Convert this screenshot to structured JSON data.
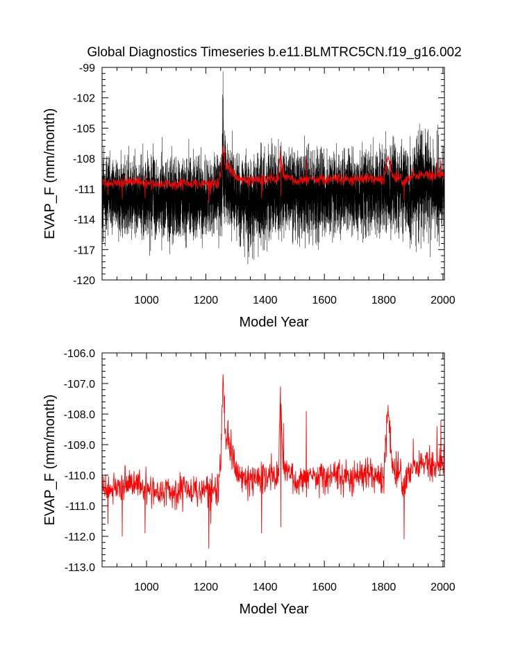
{
  "figure_title": "Global Diagnostics Timeseries b.e11.BLMTRC5CN.f19_g16.002",
  "chart_data": [
    {
      "type": "line",
      "title": "Global Diagnostics Timeseries b.e11.BLMTRC5CN.f19_g16.002",
      "xlabel": "Model Year",
      "ylabel": "EVAP_F (mm/month)",
      "xlim": [
        850,
        2005
      ],
      "ylim": [
        -120,
        -99
      ],
      "xticks": [
        1000,
        1200,
        1400,
        1600,
        1800,
        2000
      ],
      "xtick_labels": [
        "1000",
        "1200",
        "1400",
        "1600",
        "1800",
        "2000"
      ],
      "yticks": [
        -120,
        -117,
        -114,
        -111,
        -108,
        -105,
        -102,
        -99
      ],
      "ytick_labels": [
        "-120",
        "-117",
        "-114",
        "-111",
        "-108",
        "-105",
        "-102",
        "-99"
      ],
      "grid": false,
      "series": [
        {
          "color": "#000000",
          "resolution": "monthly",
          "envelope_upper": [
            [
              850,
              -106.0
            ],
            [
              900,
              -106.3
            ],
            [
              950,
              -106.5
            ],
            [
              1000,
              -106.2
            ],
            [
              1050,
              -106.0
            ],
            [
              1100,
              -106.2
            ],
            [
              1150,
              -105.8
            ],
            [
              1200,
              -106.1
            ],
            [
              1250,
              -105.5
            ],
            [
              1258,
              -99.4
            ],
            [
              1270,
              -104.8
            ],
            [
              1300,
              -105.6
            ],
            [
              1350,
              -106.0
            ],
            [
              1400,
              -105.5
            ],
            [
              1450,
              -105.0
            ],
            [
              1455,
              -104.2
            ],
            [
              1500,
              -105.3
            ],
            [
              1550,
              -105.4
            ],
            [
              1600,
              -105.5
            ],
            [
              1650,
              -105.6
            ],
            [
              1700,
              -105.4
            ],
            [
              1750,
              -105.6
            ],
            [
              1800,
              -104.8
            ],
            [
              1850,
              -104.5
            ],
            [
              1900,
              -104.8
            ],
            [
              1940,
              -102.4
            ],
            [
              1960,
              -104.6
            ],
            [
              2005,
              -104.8
            ]
          ],
          "envelope_lower": [
            [
              850,
              -117.0
            ],
            [
              900,
              -117.4
            ],
            [
              950,
              -117.0
            ],
            [
              1000,
              -117.5
            ],
            [
              1050,
              -117.4
            ],
            [
              1100,
              -117.7
            ],
            [
              1150,
              -118.0
            ],
            [
              1200,
              -117.5
            ],
            [
              1250,
              -117.0
            ],
            [
              1300,
              -117.6
            ],
            [
              1350,
              -119.8
            ],
            [
              1400,
              -118.0
            ],
            [
              1450,
              -117.5
            ],
            [
              1500,
              -117.2
            ],
            [
              1550,
              -117.8
            ],
            [
              1600,
              -117.3
            ],
            [
              1650,
              -117.0
            ],
            [
              1700,
              -117.2
            ],
            [
              1750,
              -117.3
            ],
            [
              1800,
              -117.0
            ],
            [
              1850,
              -117.5
            ],
            [
              1900,
              -118.0
            ],
            [
              1950,
              -117.6
            ],
            [
              2005,
              -117.5
            ]
          ]
        },
        {
          "color": "#ff0000",
          "resolution": "annual",
          "anchors": [
            [
              850,
              -110.4
            ],
            [
              900,
              -110.5
            ],
            [
              950,
              -110.2
            ],
            [
              1000,
              -110.4
            ],
            [
              1050,
              -110.5
            ],
            [
              1100,
              -110.6
            ],
            [
              1150,
              -110.4
            ],
            [
              1200,
              -110.5
            ],
            [
              1240,
              -110.4
            ],
            [
              1250,
              -109.8
            ],
            [
              1258,
              -106.7
            ],
            [
              1265,
              -108.4
            ],
            [
              1280,
              -109.0
            ],
            [
              1300,
              -109.8
            ],
            [
              1340,
              -110.2
            ],
            [
              1400,
              -110.0
            ],
            [
              1445,
              -110.1
            ],
            [
              1452,
              -107.1
            ],
            [
              1460,
              -109.6
            ],
            [
              1500,
              -110.2
            ],
            [
              1550,
              -110.1
            ],
            [
              1600,
              -110.1
            ],
            [
              1650,
              -110.0
            ],
            [
              1700,
              -110.1
            ],
            [
              1750,
              -110.0
            ],
            [
              1800,
              -110.1
            ],
            [
              1815,
              -107.7
            ],
            [
              1830,
              -109.8
            ],
            [
              1870,
              -110.2
            ],
            [
              1900,
              -109.8
            ],
            [
              1950,
              -109.6
            ],
            [
              2000,
              -109.6
            ]
          ],
          "spikes": [
            [
              1258,
              -106.7
            ],
            [
              1275,
              -108.2
            ],
            [
              1452,
              -107.1
            ],
            [
              1462,
              -108.3
            ],
            [
              1539,
              -107.9
            ],
            [
              1815,
              -107.7
            ],
            [
              1285,
              -108.5
            ],
            [
              1993,
              -108.2
            ],
            [
              1980,
              -108.4
            ],
            [
              1900,
              -108.8
            ],
            [
              1217,
              -111.6
            ],
            [
              1210,
              -112.4
            ],
            [
              1388,
              -111.9
            ],
            [
              1453,
              -111.7
            ],
            [
              1869,
              -112.1
            ],
            [
              918,
              -112.0
            ],
            [
              995,
              -111.9
            ],
            [
              870,
              -111.6
            ]
          ]
        }
      ]
    },
    {
      "type": "line",
      "title": "",
      "xlabel": "Model Year",
      "ylabel": "EVAP_F (mm/month)",
      "xlim": [
        850,
        2005
      ],
      "ylim": [
        -113,
        -106
      ],
      "xticks": [
        1000,
        1200,
        1400,
        1600,
        1800,
        2000
      ],
      "xtick_labels": [
        "1000",
        "1200",
        "1400",
        "1600",
        "1800",
        "2000"
      ],
      "yticks": [
        -113,
        -112,
        -111,
        -110,
        -109,
        -108,
        -107,
        -106
      ],
      "ytick_labels": [
        "-113.0",
        "-112.0",
        "-111.0",
        "-110.0",
        "-109.0",
        "-108.0",
        "-107.0",
        "-106.0"
      ],
      "grid": false,
      "series": [
        {
          "color": "#ff0000",
          "resolution": "annual",
          "anchors": [
            [
              850,
              -110.4
            ],
            [
              900,
              -110.5
            ],
            [
              950,
              -110.2
            ],
            [
              1000,
              -110.4
            ],
            [
              1050,
              -110.5
            ],
            [
              1100,
              -110.6
            ],
            [
              1150,
              -110.4
            ],
            [
              1200,
              -110.5
            ],
            [
              1240,
              -110.4
            ],
            [
              1250,
              -109.8
            ],
            [
              1258,
              -106.7
            ],
            [
              1265,
              -108.4
            ],
            [
              1280,
              -109.0
            ],
            [
              1300,
              -109.8
            ],
            [
              1340,
              -110.2
            ],
            [
              1400,
              -110.0
            ],
            [
              1445,
              -110.1
            ],
            [
              1452,
              -107.1
            ],
            [
              1460,
              -109.6
            ],
            [
              1500,
              -110.2
            ],
            [
              1550,
              -110.1
            ],
            [
              1600,
              -110.1
            ],
            [
              1650,
              -110.0
            ],
            [
              1700,
              -110.1
            ],
            [
              1750,
              -110.0
            ],
            [
              1800,
              -110.1
            ],
            [
              1815,
              -107.7
            ],
            [
              1830,
              -109.8
            ],
            [
              1870,
              -110.2
            ],
            [
              1900,
              -109.8
            ],
            [
              1950,
              -109.6
            ],
            [
              2000,
              -109.6
            ]
          ],
          "spikes": [
            [
              1258,
              -106.7
            ],
            [
              1275,
              -108.2
            ],
            [
              1452,
              -107.1
            ],
            [
              1462,
              -108.3
            ],
            [
              1539,
              -107.9
            ],
            [
              1815,
              -107.7
            ],
            [
              1285,
              -108.5
            ],
            [
              1993,
              -108.2
            ],
            [
              1980,
              -108.4
            ],
            [
              1900,
              -108.8
            ],
            [
              1217,
              -111.6
            ],
            [
              1210,
              -112.4
            ],
            [
              1388,
              -111.9
            ],
            [
              1453,
              -111.7
            ],
            [
              1869,
              -112.1
            ],
            [
              918,
              -112.0
            ],
            [
              995,
              -111.9
            ],
            [
              870,
              -111.6
            ]
          ]
        }
      ]
    }
  ]
}
